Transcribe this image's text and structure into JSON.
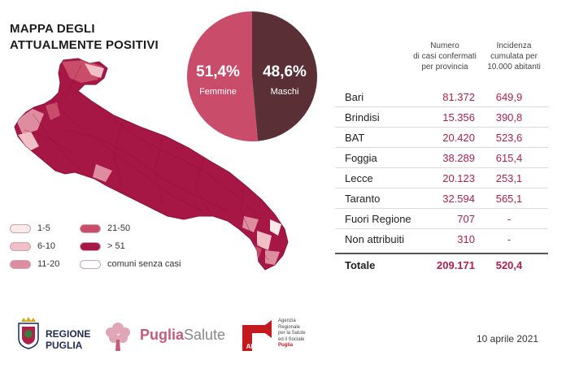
{
  "title": "MAPPA DEGLI ATTUALMENTE POSITIVI",
  "title_line1": "MAPPA DEGLI",
  "title_line2": "ATTUALMENTE POSITIVI",
  "colors": {
    "dark_maroon": "#5a3036",
    "crimson": "#a71745",
    "pink": "#c94d6b",
    "level_1_5": "#fbeaea",
    "level_6_10": "#f1bfc6",
    "level_11_20": "#de8c9f",
    "level_21_50": "#c94d6b",
    "level_gt51": "#a71745",
    "level_none": "#ffffff"
  },
  "legend": {
    "items": [
      {
        "label": "1-5",
        "color": "#fbeaea"
      },
      {
        "label": "6-10",
        "color": "#f1bfc6"
      },
      {
        "label": "11-20",
        "color": "#de8c9f"
      },
      {
        "label": "21-50",
        "color": "#c94d6b"
      },
      {
        "label": "> 51",
        "color": "#a71745"
      },
      {
        "label": "comuni senza casi",
        "color": "#ffffff"
      }
    ]
  },
  "table": {
    "header_cases": [
      "Numero",
      "di casi confermati",
      "per provincia"
    ],
    "header_incidence": [
      "Incidenza",
      "cumulata per",
      "10.000 abitanti"
    ],
    "rows": [
      {
        "province": "Bari",
        "cases": "81.372",
        "incidence": "649,9"
      },
      {
        "province": "Brindisi",
        "cases": "15.356",
        "incidence": "390,8"
      },
      {
        "province": "BAT",
        "cases": "20.420",
        "incidence": "523,6"
      },
      {
        "province": "Foggia",
        "cases": "38.289",
        "incidence": "615,4"
      },
      {
        "province": "Lecce",
        "cases": "20.123",
        "incidence": "253,1"
      },
      {
        "province": "Taranto",
        "cases": "32.594",
        "incidence": "565,1"
      },
      {
        "province": "Fuori Regione",
        "cases": "707",
        "incidence": "-"
      },
      {
        "province": "Non attribuiti",
        "cases": "310",
        "incidence": "-"
      }
    ],
    "total": {
      "province": "Totale",
      "cases": "209.171",
      "incidence": "520,4"
    }
  },
  "chart_data": [
    {
      "type": "pie",
      "categories": [
        "Femmine",
        "Maschi"
      ],
      "values": [
        51.4,
        48.6
      ],
      "value_labels": [
        "51,4%",
        "48,6%"
      ],
      "colors": [
        "#c94d6b",
        "#5a3036"
      ]
    },
    {
      "type": "table",
      "columns": [
        "Numero di casi confermati per provincia",
        "Incidenza cumulata per 10.000 abitanti"
      ],
      "rows": [
        "Bari",
        "Brindisi",
        "BAT",
        "Foggia",
        "Lecce",
        "Taranto",
        "Fuori Regione",
        "Non attribuiti",
        "Totale"
      ],
      "cases": [
        81372,
        15356,
        20420,
        38289,
        20123,
        32594,
        707,
        310,
        209171
      ],
      "incidence": [
        649.9,
        390.8,
        523.6,
        615.4,
        253.1,
        565.1,
        null,
        null,
        520.4
      ]
    }
  ],
  "footer": {
    "regione_line1": "REGIONE",
    "regione_line2": "PUGLIA",
    "puglia_salute_a": "Puglia",
    "puglia_salute_b": "Salute",
    "ares_logo_text": "AReSS",
    "ares_lines": [
      "Agenzia",
      "Regionale",
      "per la Salute",
      "ed il Sociale",
      "Puglia"
    ],
    "date": "10 aprile 2021"
  }
}
